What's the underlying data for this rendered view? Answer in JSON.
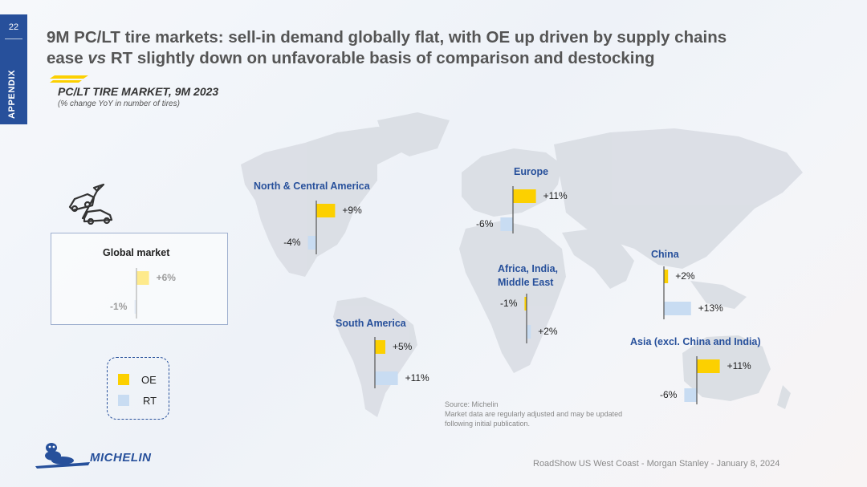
{
  "page_number": "22",
  "section_tab": "APPENDIX",
  "title": {
    "line1": "9M PC/LT tire markets: sell-in demand globally flat, with OE up driven by supply chains",
    "line2_a": "ease ",
    "line2_vs": "vs",
    "line2_b": " RT slightly down on unfavorable basis of comparison and destocking"
  },
  "subtitle": "PC/LT TIRE MARKET, 9M 2023",
  "subtitle_note": "(% change YoY in number of tires)",
  "colors": {
    "oe": "#fcd000",
    "rt": "#c8dcf2",
    "accent": "#27509b",
    "map": "#d9dde3"
  },
  "legend": {
    "oe": "OE",
    "rt": "RT"
  },
  "icon": "car-on-lift-icon",
  "source_lines": [
    "Source: Michelin",
    "Market data are regularly adjusted and may be updated",
    "following initial publication."
  ],
  "footer": "RoadShow US West Coast - Morgan Stanley - January 8, 2024",
  "brand": "MICHELIN",
  "chart_data": {
    "type": "bar",
    "categories": [
      "Global market",
      "North & Central America",
      "South America",
      "Europe",
      "Africa, India, Middle East",
      "China",
      "Asia (excl. China and India)"
    ],
    "series": [
      {
        "name": "OE",
        "values": [
          6,
          9,
          5,
          11,
          -1,
          2,
          11
        ]
      },
      {
        "name": "RT",
        "values": [
          -1,
          -4,
          11,
          -6,
          2,
          13,
          -6
        ]
      }
    ],
    "labels": {
      "OE": [
        "+6%",
        "+9%",
        "+5%",
        "+11%",
        "-1%",
        "+2%",
        "+11%"
      ],
      "RT": [
        "-1%",
        "-4%",
        "+11%",
        "-6%",
        "+2%",
        "+13%",
        "-6%"
      ]
    }
  }
}
